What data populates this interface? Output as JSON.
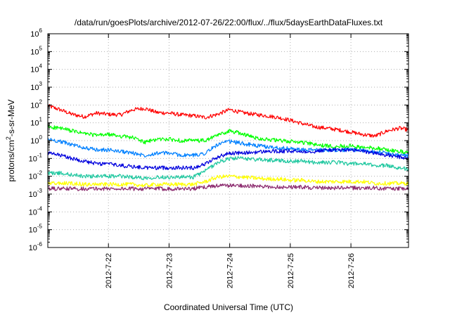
{
  "chart_data": {
    "type": "line",
    "title": "/data/run/goesPlots/archive/2012-07-26/22:00/flux/../flux/5daysEarthDataFluxes.txt",
    "xlabel": "Coordinated Universal Time (UTC)",
    "ylabel_parts": {
      "prefix": "protons/cm",
      "sup": "2",
      "suffix": "-s-sr-MeV"
    },
    "y_scale": "log",
    "ylim": [
      1e-06,
      1000000.0
    ],
    "y_ticks": [
      {
        "base": "10",
        "exp": "-6"
      },
      {
        "base": "10",
        "exp": "-5"
      },
      {
        "base": "10",
        "exp": "-4"
      },
      {
        "base": "10",
        "exp": "-3"
      },
      {
        "base": "10",
        "exp": "-2"
      },
      {
        "base": "10",
        "exp": "-1"
      },
      {
        "base": "10",
        "exp": "0"
      },
      {
        "base": "10",
        "exp": "1"
      },
      {
        "base": "10",
        "exp": "2"
      },
      {
        "base": "10",
        "exp": "3"
      },
      {
        "base": "10",
        "exp": "4"
      },
      {
        "base": "10",
        "exp": "5"
      },
      {
        "base": "10",
        "exp": "6"
      }
    ],
    "x_ticks": [
      "2012-7-22",
      "2012-7-23",
      "2012-7-24",
      "2012-7-25",
      "2012-7-26"
    ],
    "x_tick_positions": [
      1.0,
      2.0,
      3.0,
      4.0,
      5.0
    ],
    "xlim": [
      0.0,
      5.95
    ],
    "grid": true,
    "series": [
      {
        "color": "#ff0000",
        "x": [
          0.0,
          0.2,
          0.4,
          0.6,
          0.8,
          1.0,
          1.2,
          1.4,
          1.6,
          1.8,
          2.0,
          2.2,
          2.4,
          2.6,
          2.8,
          3.0,
          3.2,
          3.4,
          3.6,
          3.8,
          4.0,
          4.2,
          4.4,
          4.6,
          4.8,
          5.0,
          5.2,
          5.4,
          5.6,
          5.8,
          5.95
        ],
        "y": [
          90,
          55,
          30,
          22,
          35,
          30,
          28,
          55,
          65,
          38,
          35,
          28,
          25,
          20,
          30,
          55,
          38,
          30,
          25,
          20,
          14,
          9,
          6,
          5,
          4,
          3,
          2.2,
          1.8,
          3.5,
          5,
          4
        ]
      },
      {
        "color": "#00ff00",
        "x": [
          0.0,
          0.2,
          0.4,
          0.6,
          0.8,
          1.0,
          1.2,
          1.4,
          1.6,
          1.8,
          2.0,
          2.2,
          2.4,
          2.6,
          2.8,
          3.0,
          3.2,
          3.4,
          3.6,
          3.8,
          4.0,
          4.2,
          4.4,
          4.6,
          4.8,
          5.0,
          5.2,
          5.4,
          5.6,
          5.8,
          5.95
        ],
        "y": [
          6,
          5,
          3.5,
          2.5,
          2,
          2.2,
          1.8,
          1.5,
          0.8,
          1.2,
          1.2,
          1.0,
          1.0,
          1.0,
          2,
          3.5,
          2.5,
          1.5,
          1.2,
          1.0,
          0.9,
          0.8,
          0.6,
          0.5,
          0.5,
          0.5,
          0.4,
          0.4,
          0.3,
          0.25,
          0.2
        ]
      },
      {
        "color": "#0080ff",
        "x": [
          0.0,
          0.2,
          0.4,
          0.6,
          0.8,
          1.0,
          1.2,
          1.4,
          1.6,
          1.8,
          2.0,
          2.2,
          2.4,
          2.6,
          2.8,
          3.0,
          3.2,
          3.4,
          3.6,
          3.8,
          4.0,
          4.2,
          4.4,
          4.6,
          4.8,
          5.0,
          5.2,
          5.4,
          5.6,
          5.8,
          5.95
        ],
        "y": [
          1.2,
          0.9,
          0.6,
          0.4,
          0.3,
          0.3,
          0.25,
          0.2,
          0.15,
          0.2,
          0.2,
          0.15,
          0.15,
          0.2,
          0.6,
          0.9,
          0.7,
          0.55,
          0.45,
          0.4,
          0.35,
          0.3,
          0.3,
          0.3,
          0.3,
          0.3,
          0.28,
          0.25,
          0.2,
          0.15,
          0.15
        ]
      },
      {
        "color": "#0000dd",
        "x": [
          0.0,
          0.2,
          0.4,
          0.6,
          0.8,
          1.0,
          1.2,
          1.4,
          1.6,
          1.8,
          2.0,
          2.2,
          2.4,
          2.6,
          2.8,
          3.0,
          3.2,
          3.4,
          3.6,
          3.8,
          4.0,
          4.2,
          4.4,
          4.6,
          4.8,
          5.0,
          5.2,
          5.4,
          5.6,
          5.8,
          5.95
        ],
        "y": [
          0.2,
          0.15,
          0.1,
          0.07,
          0.05,
          0.05,
          0.04,
          0.035,
          0.03,
          0.03,
          0.03,
          0.03,
          0.03,
          0.05,
          0.12,
          0.2,
          0.2,
          0.22,
          0.25,
          0.25,
          0.25,
          0.25,
          0.25,
          0.3,
          0.3,
          0.3,
          0.25,
          0.2,
          0.15,
          0.12,
          0.1
        ]
      },
      {
        "color": "#20c8a0",
        "x": [
          0.0,
          0.2,
          0.4,
          0.6,
          0.8,
          1.0,
          1.2,
          1.4,
          1.6,
          1.8,
          2.0,
          2.2,
          2.4,
          2.6,
          2.8,
          3.0,
          3.2,
          3.4,
          3.6,
          3.8,
          4.0,
          4.2,
          4.4,
          4.6,
          4.8,
          5.0,
          5.2,
          5.4,
          5.6,
          5.8,
          5.95
        ],
        "y": [
          0.015,
          0.015,
          0.012,
          0.01,
          0.01,
          0.01,
          0.01,
          0.009,
          0.008,
          0.009,
          0.009,
          0.009,
          0.009,
          0.02,
          0.06,
          0.1,
          0.1,
          0.09,
          0.08,
          0.08,
          0.07,
          0.07,
          0.06,
          0.06,
          0.06,
          0.05,
          0.05,
          0.04,
          0.04,
          0.03,
          0.025
        ]
      },
      {
        "color": "#ffff00",
        "x": [
          0.0,
          0.2,
          0.4,
          0.6,
          0.8,
          1.0,
          1.2,
          1.4,
          1.6,
          1.8,
          2.0,
          2.2,
          2.4,
          2.6,
          2.8,
          3.0,
          3.2,
          3.4,
          3.6,
          3.8,
          4.0,
          4.2,
          4.4,
          4.6,
          4.8,
          5.0,
          5.2,
          5.4,
          5.6,
          5.8,
          5.95
        ],
        "y": [
          0.004,
          0.004,
          0.004,
          0.0035,
          0.0035,
          0.0035,
          0.0035,
          0.0035,
          0.003,
          0.0035,
          0.0035,
          0.0035,
          0.0035,
          0.005,
          0.009,
          0.01,
          0.009,
          0.008,
          0.007,
          0.007,
          0.006,
          0.006,
          0.005,
          0.005,
          0.005,
          0.005,
          0.005,
          0.004,
          0.004,
          0.004,
          0.004
        ]
      },
      {
        "color": "#8b2a6e",
        "x": [
          0.0,
          0.2,
          0.4,
          0.6,
          0.8,
          1.0,
          1.2,
          1.4,
          1.6,
          1.8,
          2.0,
          2.2,
          2.4,
          2.6,
          2.8,
          3.0,
          3.2,
          3.4,
          3.6,
          3.8,
          4.0,
          4.2,
          4.4,
          4.6,
          4.8,
          5.0,
          5.2,
          5.4,
          5.6,
          5.8,
          5.95
        ],
        "y": [
          0.002,
          0.002,
          0.002,
          0.002,
          0.002,
          0.002,
          0.002,
          0.002,
          0.002,
          0.002,
          0.002,
          0.002,
          0.002,
          0.0025,
          0.003,
          0.003,
          0.003,
          0.0028,
          0.0025,
          0.0025,
          0.0025,
          0.0025,
          0.0022,
          0.0022,
          0.0022,
          0.0022,
          0.0022,
          0.0022,
          0.002,
          0.002,
          0.002
        ]
      }
    ]
  }
}
